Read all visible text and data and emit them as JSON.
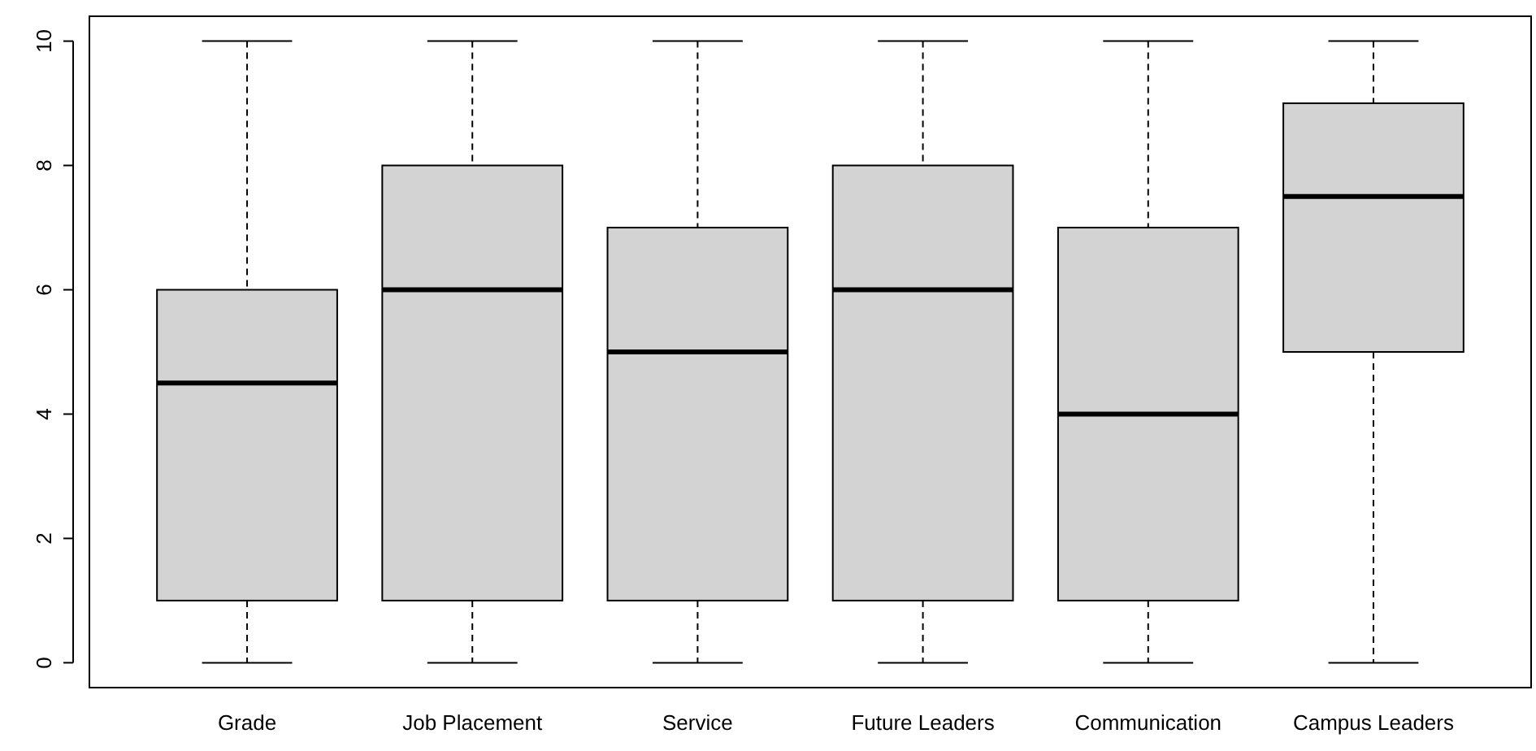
{
  "chart_data": {
    "type": "box",
    "categories": [
      "Grade",
      "Job Placement",
      "Service",
      "Future Leaders",
      "Communication",
      "Campus Leaders"
    ],
    "boxes": [
      {
        "low": 0,
        "q1": 1,
        "median": 4.5,
        "q3": 6,
        "high": 10
      },
      {
        "low": 0,
        "q1": 1,
        "median": 6,
        "q3": 8,
        "high": 10
      },
      {
        "low": 0,
        "q1": 1,
        "median": 5,
        "q3": 7,
        "high": 10
      },
      {
        "low": 0,
        "q1": 1,
        "median": 6,
        "q3": 8,
        "high": 10
      },
      {
        "low": 0,
        "q1": 1,
        "median": 4,
        "q3": 7,
        "high": 10
      },
      {
        "low": 0,
        "q1": 5,
        "median": 7.5,
        "q3": 9,
        "high": 10
      }
    ],
    "color": "#d3d3d3",
    "ylim": [
      -0.4,
      10.4
    ],
    "yticks": [
      0,
      2,
      4,
      6,
      8,
      10
    ],
    "grid": false,
    "line_style": "dashed"
  }
}
